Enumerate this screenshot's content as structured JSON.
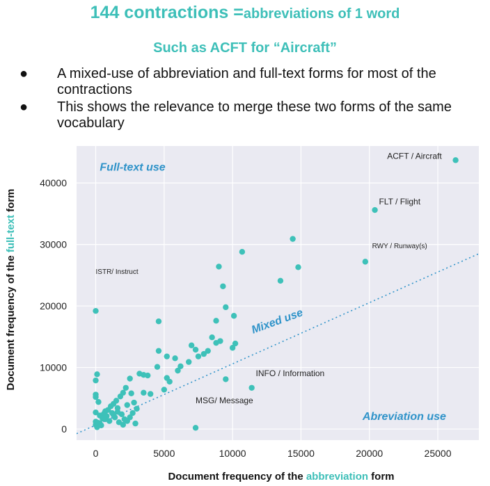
{
  "header": {
    "title_big": "144 contractions =",
    "title_small": "abbreviations of 1 word",
    "subtitle": "Such as ACFT for “Aircraft”"
  },
  "bullets": [
    "A mixed-use of abbreviation and full-text forms for most of the contractions",
    "This shows the relevance to merge these two forms of the same vocabulary"
  ],
  "bullet_glyph": "●",
  "colors": {
    "accent": "#3dbfb8",
    "point": "#3ec1b9",
    "region_label": "#2f93c9",
    "plot_bg": "#eaeaf2",
    "grid": "#ffffff"
  },
  "chart_data": {
    "type": "scatter",
    "xlabel_parts": [
      "Document frequency of the ",
      "abbreviation",
      " form"
    ],
    "ylabel_parts": [
      "Document frequency of the ",
      "full-text",
      " form"
    ],
    "xlim": [
      -1400,
      28000
    ],
    "ylim": [
      -1800,
      46000
    ],
    "xticks": [
      0,
      5000,
      10000,
      15000,
      20000,
      25000
    ],
    "yticks": [
      0,
      10000,
      20000,
      30000,
      40000
    ],
    "grid": true,
    "diagonal_line": {
      "x": [
        -1400,
        28000
      ],
      "y": [
        -750,
        28500
      ]
    },
    "region_labels": [
      {
        "text": "Full-text use",
        "x": 300,
        "y": 42000,
        "rotate": 0
      },
      {
        "text": "Mixed use",
        "x": 11500,
        "y": 15500,
        "rotate": -20
      },
      {
        "text": "Abreviation use",
        "x": 19500,
        "y": 1500,
        "rotate": 0
      }
    ],
    "annotations": [
      {
        "text": "ACFT / Aircraft",
        "x": 21300,
        "y": 43900,
        "size": 12
      },
      {
        "text": "FLT / Flight",
        "x": 20700,
        "y": 36500,
        "size": 12
      },
      {
        "text": "RWY / Runway(s)",
        "x": 20200,
        "y": 29400,
        "size": 10
      },
      {
        "text": "ISTR/ Instruct",
        "x": 0,
        "y": 25200,
        "size": 10
      },
      {
        "text": "INFO / Information",
        "x": 11700,
        "y": 8600,
        "size": 12
      },
      {
        "text": "MSG/ Message",
        "x": 7300,
        "y": 4200,
        "size": 12
      }
    ],
    "points": [
      [
        26300,
        43700
      ],
      [
        20400,
        35600
      ],
      [
        19700,
        27200
      ],
      [
        0,
        19200
      ],
      [
        7300,
        200
      ],
      [
        11400,
        6700
      ],
      [
        9500,
        8100
      ],
      [
        14400,
        30900
      ],
      [
        14800,
        26300
      ],
      [
        13500,
        24100
      ],
      [
        10700,
        28800
      ],
      [
        9000,
        26400
      ],
      [
        9300,
        23200
      ],
      [
        9500,
        19800
      ],
      [
        10100,
        18400
      ],
      [
        8800,
        17600
      ],
      [
        4600,
        17500
      ],
      [
        10000,
        13200
      ],
      [
        10200,
        13900
      ],
      [
        9100,
        14300
      ],
      [
        8800,
        14000
      ],
      [
        8500,
        14900
      ],
      [
        8200,
        12700
      ],
      [
        7900,
        12200
      ],
      [
        7500,
        11800
      ],
      [
        7000,
        13600
      ],
      [
        7300,
        12900
      ],
      [
        6800,
        10900
      ],
      [
        6200,
        10200
      ],
      [
        6000,
        9500
      ],
      [
        5800,
        11500
      ],
      [
        5200,
        11800
      ],
      [
        4600,
        12700
      ],
      [
        4500,
        10100
      ],
      [
        5000,
        6400
      ],
      [
        5400,
        7700
      ],
      [
        5200,
        8300
      ],
      [
        3800,
        8700
      ],
      [
        3500,
        8800
      ],
      [
        3200,
        9000
      ],
      [
        2500,
        8200
      ],
      [
        2200,
        6700
      ],
      [
        2000,
        5900
      ],
      [
        1800,
        5300
      ],
      [
        1500,
        4600
      ],
      [
        1300,
        4100
      ],
      [
        1100,
        3700
      ],
      [
        900,
        3100
      ],
      [
        700,
        2900
      ],
      [
        600,
        2500
      ],
      [
        300,
        2200
      ],
      [
        0,
        2700
      ],
      [
        100,
        8900
      ],
      [
        0,
        7900
      ],
      [
        0,
        5600
      ],
      [
        0,
        5200
      ],
      [
        200,
        4400
      ],
      [
        0,
        1200
      ],
      [
        0,
        700
      ],
      [
        100,
        300
      ],
      [
        200,
        1000
      ],
      [
        400,
        600
      ],
      [
        500,
        1700
      ],
      [
        800,
        2100
      ],
      [
        1000,
        1300
      ],
      [
        1200,
        2600
      ],
      [
        1400,
        1900
      ],
      [
        1600,
        3400
      ],
      [
        1900,
        2400
      ],
      [
        2100,
        1600
      ],
      [
        2300,
        3900
      ],
      [
        2600,
        5800
      ],
      [
        2800,
        4300
      ],
      [
        3000,
        3300
      ],
      [
        2700,
        2600
      ],
      [
        2500,
        1900
      ],
      [
        2300,
        1300
      ],
      [
        2000,
        700
      ],
      [
        1700,
        1100
      ],
      [
        2900,
        900
      ],
      [
        3500,
        5900
      ],
      [
        4000,
        5700
      ],
      [
        1600,
        2800
      ],
      [
        1300,
        2300
      ],
      [
        700,
        1600
      ],
      [
        300,
        900
      ]
    ]
  }
}
